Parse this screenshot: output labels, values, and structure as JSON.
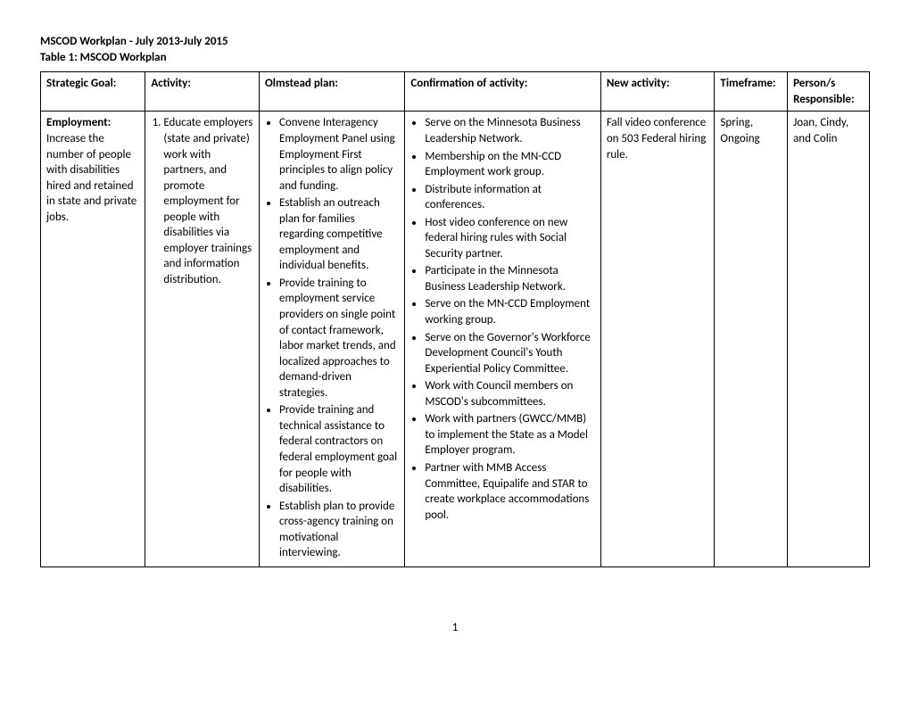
{
  "header": {
    "line1": "MSCOD Workplan - July 2013-July 2015",
    "line2": "Table 1: MSCOD Workplan"
  },
  "table": {
    "headers": [
      "Strategic Goal:",
      "Activity:",
      "Olmstead plan:",
      "Confirmation of activity:",
      "New activity:",
      "Timeframe:",
      "Person/s Responsible:"
    ],
    "row": {
      "goal_label": "Employment:",
      "goal_text": "Increase the number of people with disabilities hired and retained in state and private jobs.",
      "activity_items": [
        "Educate employers (state and private) work with partners, and promote employment for people with disabilities via employer trainings and information distribution."
      ],
      "olmstead_items": [
        "Convene Interagency Employment Panel using Employment First principles to align policy and funding.",
        "Establish an outreach plan for families regarding competitive employment and individual benefits.",
        "Provide training to employment service providers on single point of contact framework, labor market trends, and localized approaches to demand-driven strategies.",
        "Provide training and technical assistance to federal contractors on federal employment goal for people with disabilities.",
        "Establish plan to provide cross-agency training on motivational interviewing."
      ],
      "confirmation_items": [
        "Serve on the Minnesota Business Leadership Network.",
        "Membership on the MN-CCD Employment work group.",
        "Distribute information at conferences.",
        "Host video conference on new federal hiring rules with Social Security partner.",
        "Participate in the Minnesota Business Leadership Network.",
        "Serve on the MN-CCD Employment working group.",
        "Serve on the Governor's Workforce Development Council's Youth Experiential Policy Committee.",
        "Work with Council members on MSCOD's subcommittees.",
        "Work with partners (GWCC/MMB) to implement the State as a Model Employer program.",
        "Partner with MMB Access Committee, Equipalife and STAR to create workplace accommodations pool."
      ],
      "new_activity": "Fall video conference on 503 Federal hiring rule.",
      "timeframe": "Spring, Ongoing",
      "responsible": "Joan, Cindy, and Colin"
    }
  },
  "page_number": "1"
}
